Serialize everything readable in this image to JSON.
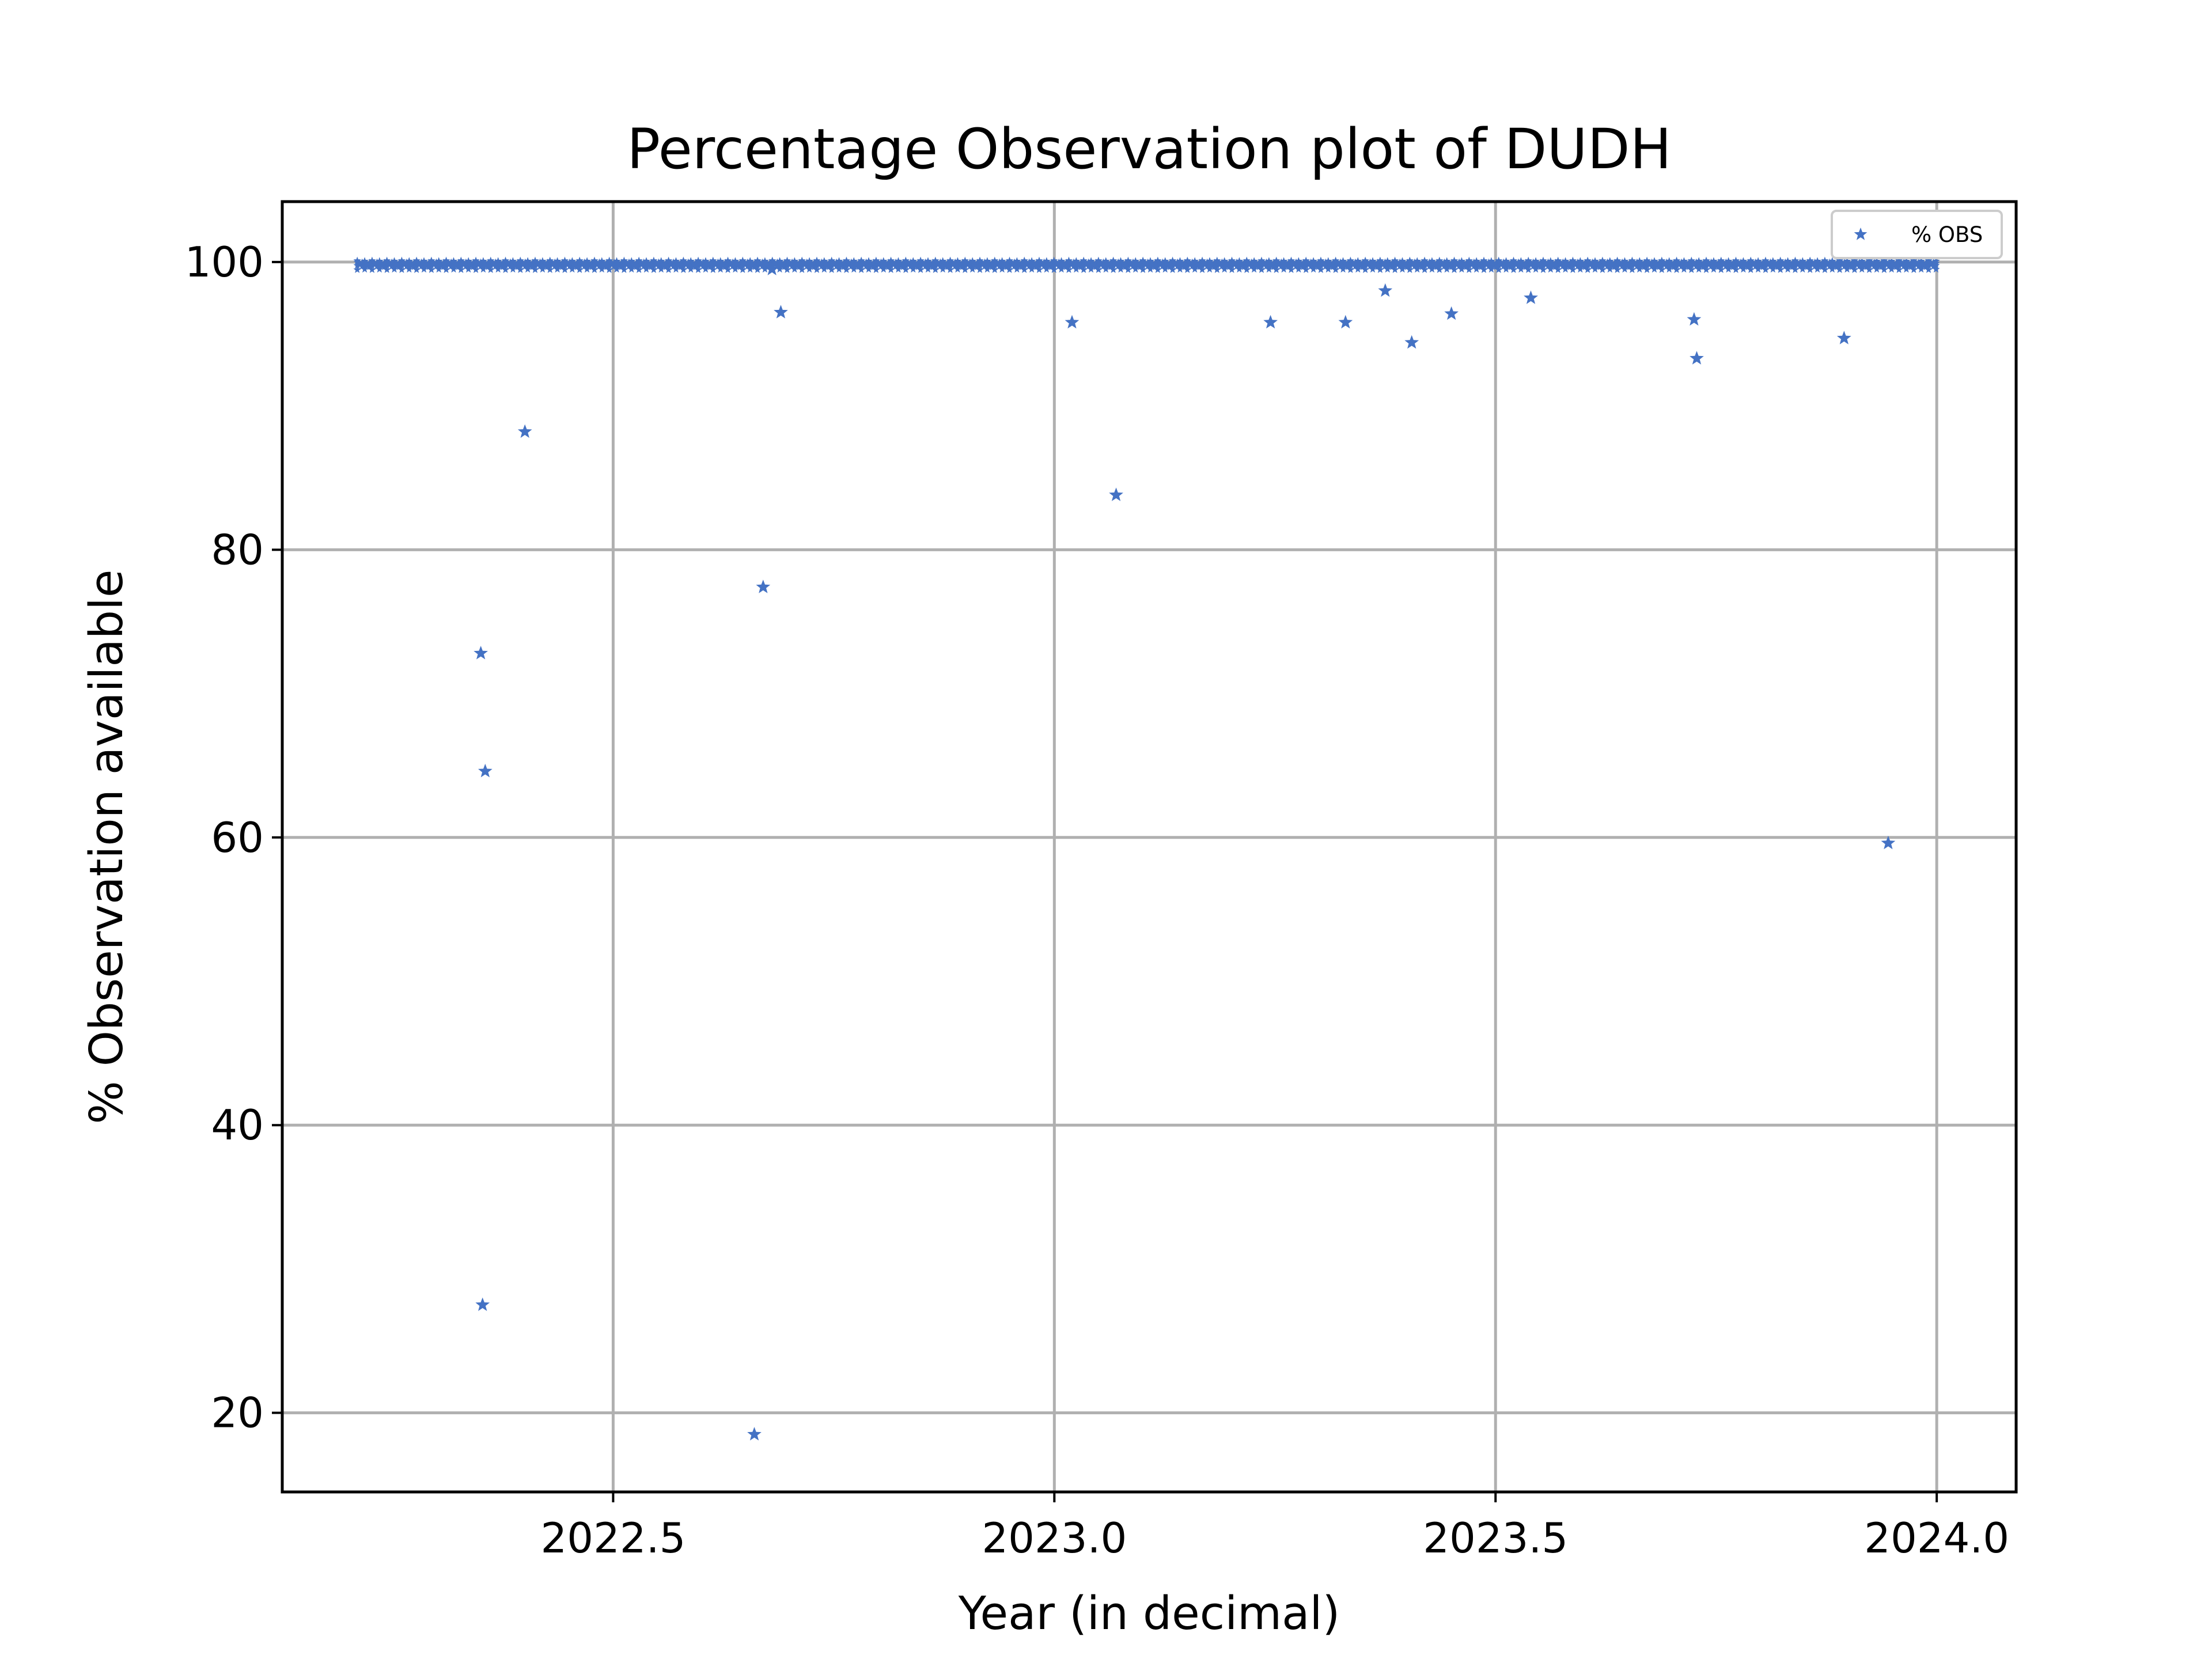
{
  "chart_data": {
    "type": "scatter",
    "title": "Percentage Observation plot of DUDH",
    "xlabel": "Year (in decimal)",
    "ylabel": "% Observation available",
    "xlim": [
      2022.125,
      2024.09
    ],
    "ylim": [
      14.5,
      104.2
    ],
    "xticks": [
      2022.5,
      2023.0,
      2023.5,
      2024.0
    ],
    "xtick_labels": [
      "2022.5",
      "2023.0",
      "2023.5",
      "2024.0"
    ],
    "yticks": [
      20,
      40,
      60,
      80,
      100
    ],
    "ytick_labels": [
      "20",
      "40",
      "60",
      "80",
      "100"
    ],
    "grid": true,
    "legend": "top-right",
    "marker": "star",
    "color": "#4472c4",
    "series": [
      {
        "name": "% OBS",
        "dense_band": {
          "x_start": 2022.21,
          "x_end": 2024.0,
          "y_values": [
            99.6,
            99.8,
            100.0,
            100.2
          ]
        },
        "points": [
          {
            "x": 2022.35,
            "y": 72.8
          },
          {
            "x": 2022.355,
            "y": 64.6
          },
          {
            "x": 2022.352,
            "y": 27.5
          },
          {
            "x": 2022.4,
            "y": 88.2
          },
          {
            "x": 2022.66,
            "y": 18.5
          },
          {
            "x": 2022.67,
            "y": 77.4
          },
          {
            "x": 2022.68,
            "y": 99.5
          },
          {
            "x": 2022.69,
            "y": 96.5
          },
          {
            "x": 2023.02,
            "y": 95.8
          },
          {
            "x": 2023.07,
            "y": 83.8
          },
          {
            "x": 2023.245,
            "y": 95.8
          },
          {
            "x": 2023.33,
            "y": 95.8
          },
          {
            "x": 2023.375,
            "y": 98.0
          },
          {
            "x": 2023.405,
            "y": 94.4
          },
          {
            "x": 2023.45,
            "y": 96.4
          },
          {
            "x": 2023.54,
            "y": 97.5
          },
          {
            "x": 2023.725,
            "y": 96.0
          },
          {
            "x": 2023.728,
            "y": 93.3
          },
          {
            "x": 2023.895,
            "y": 94.7
          },
          {
            "x": 2023.945,
            "y": 59.6
          }
        ]
      }
    ]
  }
}
